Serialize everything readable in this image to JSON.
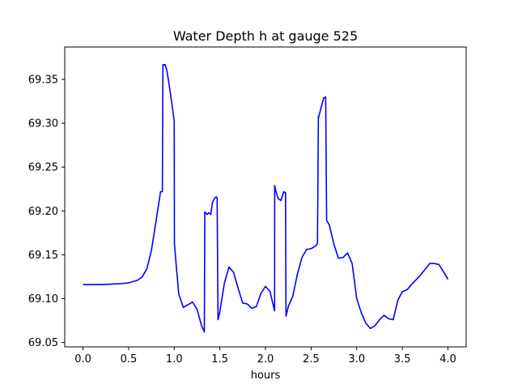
{
  "chart_data": {
    "type": "line",
    "title": "Water Depth h at gauge 525",
    "xlabel": "hours",
    "ylabel": "",
    "xlim": [
      -0.2,
      4.2
    ],
    "ylim": [
      69.045,
      69.387
    ],
    "xticks": [
      0.0,
      0.5,
      1.0,
      1.5,
      2.0,
      2.5,
      3.0,
      3.5,
      4.0
    ],
    "xtick_labels": [
      "0.0",
      "0.5",
      "1.0",
      "1.5",
      "2.0",
      "2.5",
      "3.0",
      "3.5",
      "4.0"
    ],
    "yticks": [
      69.05,
      69.1,
      69.15,
      69.2,
      69.25,
      69.3,
      69.35
    ],
    "ytick_labels": [
      "69.05",
      "69.10",
      "69.15",
      "69.20",
      "69.25",
      "69.30",
      "69.35"
    ],
    "grid": false,
    "legend": "none",
    "series": [
      {
        "color": "#0000ff",
        "x": [
          0.0,
          0.2,
          0.4,
          0.5,
          0.6,
          0.65,
          0.7,
          0.75,
          0.8,
          0.85,
          0.87,
          0.876,
          0.88,
          0.9,
          0.92,
          0.95,
          0.98,
          1.0,
          1.002,
          1.02,
          1.05,
          1.1,
          1.15,
          1.2,
          1.25,
          1.3,
          1.33,
          1.335,
          1.36,
          1.38,
          1.4,
          1.42,
          1.44,
          1.46,
          1.47,
          1.48,
          1.5,
          1.55,
          1.6,
          1.65,
          1.7,
          1.75,
          1.8,
          1.85,
          1.9,
          1.95,
          2.0,
          2.05,
          2.1,
          2.101,
          2.115,
          2.14,
          2.17,
          2.2,
          2.21,
          2.22,
          2.225,
          2.25,
          2.3,
          2.35,
          2.4,
          2.45,
          2.5,
          2.55,
          2.57,
          2.58,
          2.581,
          2.6,
          2.62,
          2.64,
          2.66,
          2.67,
          2.672,
          2.7,
          2.75,
          2.8,
          2.85,
          2.9,
          2.95,
          3.0,
          3.05,
          3.1,
          3.15,
          3.2,
          3.25,
          3.3,
          3.35,
          3.4,
          3.45,
          3.5,
          3.55,
          3.6,
          3.7,
          3.8,
          3.85,
          3.9,
          3.95,
          4.0
        ],
        "y": [
          69.116,
          69.116,
          69.117,
          69.118,
          69.121,
          69.125,
          69.134,
          69.155,
          69.188,
          69.222,
          69.222,
          69.367,
          69.366,
          69.367,
          69.36,
          69.34,
          69.318,
          69.302,
          69.163,
          69.14,
          69.105,
          69.09,
          69.093,
          69.096,
          69.088,
          69.069,
          69.062,
          69.199,
          69.196,
          69.198,
          69.196,
          69.21,
          69.214,
          69.216,
          69.215,
          69.076,
          69.085,
          69.118,
          69.136,
          69.13,
          69.112,
          69.095,
          69.094,
          69.089,
          69.091,
          69.106,
          69.114,
          69.108,
          69.086,
          69.229,
          69.222,
          69.214,
          69.212,
          69.222,
          69.221,
          69.221,
          69.08,
          69.091,
          69.103,
          69.128,
          69.147,
          69.156,
          69.157,
          69.16,
          69.163,
          69.308,
          69.306,
          69.314,
          69.322,
          69.329,
          69.33,
          69.19,
          69.189,
          69.184,
          69.162,
          69.146,
          69.147,
          69.152,
          69.14,
          69.1,
          69.084,
          69.072,
          69.066,
          69.069,
          69.076,
          69.081,
          69.077,
          69.076,
          69.098,
          69.108,
          69.11,
          69.116,
          69.127,
          69.14,
          69.14,
          69.139,
          69.131,
          69.122
        ]
      }
    ]
  }
}
